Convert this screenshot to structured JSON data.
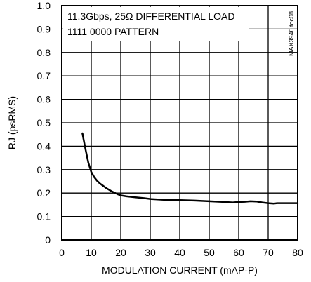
{
  "chart_data": {
    "type": "line",
    "title": "",
    "xlabel": "MODULATION CURRENT (mAP-P)",
    "ylabel": "RJ (psRMS)",
    "xlim": [
      0,
      80
    ],
    "ylim": [
      0,
      1.0
    ],
    "x_ticks": [
      "0",
      "10",
      "20",
      "30",
      "40",
      "50",
      "60",
      "70",
      "80"
    ],
    "y_ticks": [
      "0",
      "0.1",
      "0.2",
      "0.3",
      "0.4",
      "0.5",
      "0.6",
      "0.7",
      "0.8",
      "0.9",
      "1.0"
    ],
    "grid": true,
    "annotations": [
      "11.3Gbps, 25Ω DIFFERENTIAL LOAD",
      "1111 0000 PATTERN"
    ],
    "figure_code": "MAX3946 toc08",
    "series": [
      {
        "color": "#000000",
        "points": [
          [
            7,
            0.455
          ],
          [
            8,
            0.39
          ],
          [
            9,
            0.33
          ],
          [
            10,
            0.29
          ],
          [
            11,
            0.268
          ],
          [
            12,
            0.252
          ],
          [
            13,
            0.24
          ],
          [
            15,
            0.222
          ],
          [
            17,
            0.207
          ],
          [
            19,
            0.195
          ],
          [
            20,
            0.19
          ],
          [
            22,
            0.186
          ],
          [
            25,
            0.182
          ],
          [
            28,
            0.178
          ],
          [
            30,
            0.175
          ],
          [
            35,
            0.171
          ],
          [
            40,
            0.17
          ],
          [
            45,
            0.168
          ],
          [
            50,
            0.165
          ],
          [
            55,
            0.162
          ],
          [
            58,
            0.16
          ],
          [
            60,
            0.162
          ],
          [
            62,
            0.163
          ],
          [
            64,
            0.165
          ],
          [
            66,
            0.164
          ],
          [
            68,
            0.16
          ],
          [
            70,
            0.157
          ],
          [
            72,
            0.155
          ],
          [
            73,
            0.157
          ],
          [
            75,
            0.157
          ],
          [
            80,
            0.157
          ]
        ]
      }
    ]
  }
}
